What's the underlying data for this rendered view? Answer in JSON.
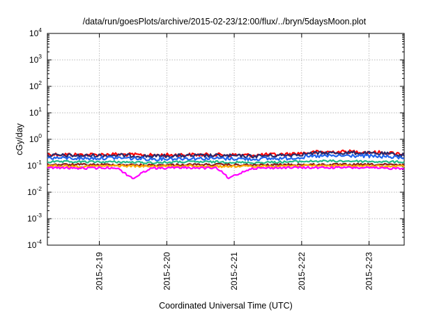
{
  "chart_data": {
    "type": "line",
    "title": "/data/run/goesPlots/archive/2015-02-23/12:00/flux/../bryn/5daysMoon.plot",
    "xlabel": "Coordinated Universal Time (UTC)",
    "ylabel": "cGy/day",
    "y_scale": "log",
    "ylim": [
      0.0001,
      10000
    ],
    "xlim": [
      "2015-02-18T05:30",
      "2015-02-23T12:30"
    ],
    "grid": true,
    "x_ticks": [
      {
        "value": "2015-02-19T00:00",
        "label": "2015-2-19"
      },
      {
        "value": "2015-02-20T00:00",
        "label": "2015-2-20"
      },
      {
        "value": "2015-02-21T00:00",
        "label": "2015-2-21"
      },
      {
        "value": "2015-02-22T00:00",
        "label": "2015-2-22"
      },
      {
        "value": "2015-02-23T00:00",
        "label": "2015-2-23"
      }
    ],
    "y_ticks": [
      {
        "value": 0.0001,
        "base": "10",
        "exp": "-4"
      },
      {
        "value": 0.001,
        "base": "10",
        "exp": "-3"
      },
      {
        "value": 0.01,
        "base": "10",
        "exp": "-2"
      },
      {
        "value": 0.1,
        "base": "10",
        "exp": "-1"
      },
      {
        "value": 1,
        "base": "10",
        "exp": "0"
      },
      {
        "value": 10,
        "base": "10",
        "exp": "1"
      },
      {
        "value": 100,
        "base": "10",
        "exp": "2"
      },
      {
        "value": 1000,
        "base": "10",
        "exp": "3"
      },
      {
        "value": 10000,
        "base": "10",
        "exp": "4"
      }
    ],
    "series": [
      {
        "color": "#ff0000",
        "x": [
          "2015-02-18T05:30",
          "2015-02-18T18:00",
          "2015-02-19T06:00",
          "2015-02-19T18:00",
          "2015-02-20T06:00",
          "2015-02-20T18:00",
          "2015-02-21T06:00",
          "2015-02-21T18:00",
          "2015-02-22T06:00",
          "2015-02-22T18:00",
          "2015-02-23T06:00",
          "2015-02-23T12:30"
        ],
        "values": [
          0.27,
          0.26,
          0.27,
          0.25,
          0.26,
          0.26,
          0.25,
          0.27,
          0.33,
          0.34,
          0.31,
          0.28
        ]
      },
      {
        "color": "#2a2a6a",
        "x": [
          "2015-02-18T05:30",
          "2015-02-18T18:00",
          "2015-02-19T06:00",
          "2015-02-19T18:00",
          "2015-02-20T06:00",
          "2015-02-20T18:00",
          "2015-02-21T06:00",
          "2015-02-21T18:00",
          "2015-02-22T06:00",
          "2015-02-22T18:00",
          "2015-02-23T06:00",
          "2015-02-23T12:30"
        ],
        "values": [
          0.25,
          0.24,
          0.25,
          0.23,
          0.24,
          0.24,
          0.23,
          0.25,
          0.3,
          0.31,
          0.28,
          0.25
        ]
      },
      {
        "color": "#2266ee",
        "x": [
          "2015-02-18T05:30",
          "2015-02-18T18:00",
          "2015-02-19T06:00",
          "2015-02-19T18:00",
          "2015-02-20T06:00",
          "2015-02-20T18:00",
          "2015-02-21T06:00",
          "2015-02-21T18:00",
          "2015-02-22T06:00",
          "2015-02-22T18:00",
          "2015-02-23T06:00",
          "2015-02-23T12:30"
        ],
        "values": [
          0.2,
          0.19,
          0.2,
          0.18,
          0.19,
          0.19,
          0.18,
          0.19,
          0.23,
          0.24,
          0.22,
          0.2
        ]
      },
      {
        "color": "#22bb88",
        "x": [
          "2015-02-18T05:30",
          "2015-02-18T18:00",
          "2015-02-19T06:00",
          "2015-02-19T18:00",
          "2015-02-20T06:00",
          "2015-02-20T18:00",
          "2015-02-21T06:00",
          "2015-02-21T18:00",
          "2015-02-22T06:00",
          "2015-02-22T18:00",
          "2015-02-23T06:00",
          "2015-02-23T12:30"
        ],
        "values": [
          0.14,
          0.14,
          0.14,
          0.13,
          0.14,
          0.14,
          0.13,
          0.14,
          0.15,
          0.15,
          0.14,
          0.14
        ]
      },
      {
        "color": "#8b1a1a",
        "x": [
          "2015-02-18T05:30",
          "2015-02-18T18:00",
          "2015-02-19T06:00",
          "2015-02-19T18:00",
          "2015-02-20T06:00",
          "2015-02-20T18:00",
          "2015-02-21T06:00",
          "2015-02-21T18:00",
          "2015-02-22T06:00",
          "2015-02-22T18:00",
          "2015-02-23T06:00",
          "2015-02-23T12:30"
        ],
        "values": [
          0.11,
          0.11,
          0.11,
          0.105,
          0.11,
          0.11,
          0.105,
          0.11,
          0.11,
          0.11,
          0.11,
          0.105
        ]
      },
      {
        "color": "#ffaa00",
        "x": [
          "2015-02-18T05:30",
          "2015-02-18T18:00",
          "2015-02-19T06:00",
          "2015-02-19T18:00",
          "2015-02-20T06:00",
          "2015-02-20T18:00",
          "2015-02-21T06:00",
          "2015-02-21T18:00",
          "2015-02-22T06:00",
          "2015-02-22T18:00",
          "2015-02-23T06:00",
          "2015-02-23T12:30"
        ],
        "values": [
          0.1,
          0.095,
          0.1,
          0.095,
          0.1,
          0.095,
          0.095,
          0.1,
          0.1,
          0.1,
          0.095,
          0.095
        ]
      },
      {
        "color": "#ff00ff",
        "x": [
          "2015-02-18T05:30",
          "2015-02-18T18:00",
          "2015-02-19T06:00",
          "2015-02-19T12:00",
          "2015-02-19T18:00",
          "2015-02-20T06:00",
          "2015-02-20T18:00",
          "2015-02-20T22:00",
          "2015-02-21T06:00",
          "2015-02-21T18:00",
          "2015-02-22T06:00",
          "2015-02-22T18:00",
          "2015-02-23T06:00",
          "2015-02-23T12:30"
        ],
        "values": [
          0.085,
          0.08,
          0.085,
          0.033,
          0.08,
          0.085,
          0.08,
          0.034,
          0.08,
          0.085,
          0.085,
          0.085,
          0.08,
          0.08
        ]
      }
    ]
  }
}
